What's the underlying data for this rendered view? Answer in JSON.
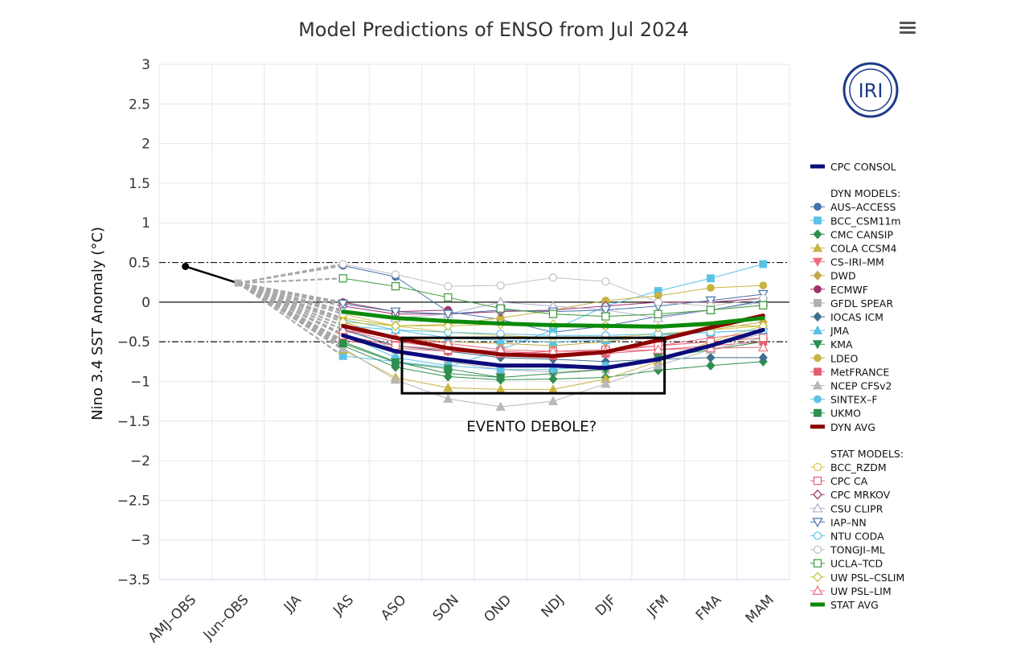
{
  "chart_data": {
    "type": "line",
    "title": "Model Predictions of ENSO from Jul 2024",
    "ylabel": "Nino 3.4 SST Anomaly (°C)",
    "xlabel": "",
    "ylim": [
      -3.5,
      3
    ],
    "yticks": [
      "3",
      "2.5",
      "2",
      "1.5",
      "1",
      "0.5",
      "0",
      "−0.5",
      "−1",
      "−1.5",
      "−2",
      "−2.5",
      "−3",
      "−3.5"
    ],
    "ytick_values": [
      3,
      2.5,
      2,
      1.5,
      1,
      0.5,
      0,
      -0.5,
      -1,
      -1.5,
      -2,
      -2.5,
      -3,
      -3.5
    ],
    "categories": [
      "AMJ–OBS",
      "Jun–OBS",
      "JJA",
      "JAS",
      "ASO",
      "SON",
      "OND",
      "NDJ",
      "DJF",
      "JFM",
      "FMA",
      "MAM"
    ],
    "thresholds": [
      0.5,
      -0.5
    ],
    "zero_line": 0,
    "observed": {
      "name": "OBS",
      "x": [
        "AMJ–OBS",
        "Jun–OBS"
      ],
      "values": [
        0.45,
        0.24
      ],
      "color": "#000000"
    },
    "annotation": {
      "text": "EVENTO DEBOLE?",
      "box_x_range": [
        "ASO",
        "JFM"
      ],
      "box_y_range": [
        -0.45,
        -1.15
      ]
    },
    "logo_text": "IRI",
    "legend": {
      "consol_label": "CPC CONSOL",
      "dyn_header": "DYN MODELS:",
      "stat_header": "STAT MODELS:"
    },
    "series": [
      {
        "name": "CPC CONSOL",
        "group": "consol",
        "color": "#0b0b7a",
        "marker": "none",
        "width": 5,
        "values": [
          null,
          null,
          null,
          -0.42,
          -0.62,
          -0.72,
          -0.8,
          -0.8,
          -0.83,
          -0.72,
          -0.55,
          -0.35
        ]
      },
      {
        "name": "AUS–ACCESS",
        "group": "dyn",
        "color": "#4572a7",
        "marker": "circle",
        "width": 1,
        "values": [
          null,
          null,
          null,
          0.46,
          0.32,
          -0.12,
          -0.22,
          -0.38,
          -0.3,
          -0.18,
          -0.1,
          0.02
        ]
      },
      {
        "name": "BCC_CSM11m",
        "group": "dyn",
        "color": "#5bc2e7",
        "marker": "square",
        "width": 1,
        "values": [
          null,
          null,
          null,
          -0.68,
          -0.75,
          -0.82,
          -0.6,
          -0.35,
          -0.05,
          0.14,
          0.3,
          0.48
        ]
      },
      {
        "name": "CMC CANSIP",
        "group": "dyn",
        "color": "#2f8f4e",
        "marker": "diamond",
        "width": 1,
        "values": [
          null,
          null,
          null,
          -0.55,
          -0.82,
          -0.94,
          -0.98,
          -0.97,
          -0.95,
          -0.86,
          -0.8,
          -0.75
        ]
      },
      {
        "name": "COLA CCSM4",
        "group": "dyn",
        "color": "#c8b440",
        "marker": "triangle",
        "width": 1,
        "values": [
          null,
          null,
          null,
          -0.6,
          -0.95,
          -1.08,
          -1.1,
          -1.1,
          -0.97,
          -0.75,
          -0.5,
          -0.3
        ]
      },
      {
        "name": "CS–IRI–MM",
        "group": "dyn",
        "color": "#ee6f82",
        "marker": "triangle-down",
        "width": 1,
        "values": [
          null,
          null,
          null,
          -0.35,
          -0.5,
          -0.58,
          -0.62,
          -0.65,
          -0.62,
          -0.55,
          -0.45,
          -0.38
        ]
      },
      {
        "name": "DWD",
        "group": "dyn",
        "color": "#c2a94a",
        "marker": "diamond",
        "width": 1,
        "values": [
          null,
          null,
          null,
          -0.25,
          -0.45,
          -0.5,
          -0.52,
          -0.55,
          -0.5,
          -0.42,
          -0.35,
          -0.25
        ]
      },
      {
        "name": "ECMWF",
        "group": "dyn",
        "color": "#a0306b",
        "marker": "circle",
        "width": 1,
        "values": [
          null,
          null,
          null,
          0.0,
          -0.12,
          -0.1,
          null,
          null,
          null,
          null,
          null,
          null
        ]
      },
      {
        "name": "GFDL SPEAR",
        "group": "dyn",
        "color": "#b0b0b0",
        "marker": "square",
        "width": 1,
        "values": [
          null,
          null,
          null,
          -0.3,
          -0.6,
          -0.75,
          -0.85,
          -0.88,
          -0.85,
          -0.7,
          -0.55,
          -0.4
        ]
      },
      {
        "name": "IOCAS ICM",
        "group": "dyn",
        "color": "#3f6e8f",
        "marker": "diamond",
        "width": 1,
        "values": [
          null,
          null,
          null,
          -0.35,
          -0.55,
          -0.62,
          -0.7,
          -0.72,
          -0.75,
          -0.72,
          -0.7,
          -0.7
        ]
      },
      {
        "name": "JMA",
        "group": "dyn",
        "color": "#5bc2e7",
        "marker": "triangle",
        "width": 1,
        "values": [
          null,
          null,
          null,
          -0.22,
          -0.35,
          -0.45,
          -0.48,
          -0.5,
          -0.48,
          -0.42,
          -0.38,
          -0.35
        ]
      },
      {
        "name": "KMA",
        "group": "dyn",
        "color": "#2f8f4e",
        "marker": "triangle-down",
        "width": 1,
        "values": [
          null,
          null,
          null,
          -0.5,
          -0.75,
          -0.9,
          -0.95,
          -0.9,
          -0.85,
          -0.7,
          -0.6,
          -0.5
        ]
      },
      {
        "name": "LDEO",
        "group": "dyn",
        "color": "#c8b440",
        "marker": "circle",
        "width": 1,
        "values": [
          null,
          null,
          null,
          -0.2,
          -0.3,
          -0.28,
          -0.2,
          -0.1,
          0.02,
          0.08,
          0.18,
          0.21
        ]
      },
      {
        "name": "MetFRANCE",
        "group": "dyn",
        "color": "#e06070",
        "marker": "square",
        "width": 1,
        "values": [
          null,
          null,
          null,
          -0.48,
          -0.58,
          -0.62,
          -0.65,
          -0.68,
          -0.65,
          -0.6,
          -0.55,
          -0.5
        ]
      },
      {
        "name": "NCEP CFSv2",
        "group": "dyn",
        "color": "#b8b8b8",
        "marker": "triangle",
        "width": 1,
        "values": [
          null,
          null,
          null,
          -0.58,
          -0.98,
          -1.22,
          -1.32,
          -1.25,
          -1.03,
          -0.8,
          -0.6,
          -0.45
        ]
      },
      {
        "name": "SINTEX–F",
        "group": "dyn",
        "color": "#5bc2e7",
        "marker": "circle",
        "width": 1,
        "values": [
          null,
          null,
          null,
          -0.4,
          -0.7,
          -0.8,
          -0.85,
          -0.85,
          -0.8,
          null,
          null,
          null
        ]
      },
      {
        "name": "UKMO",
        "group": "dyn",
        "color": "#2f8f4e",
        "marker": "square",
        "width": 1,
        "values": [
          null,
          null,
          null,
          -0.52,
          -0.76,
          -0.84,
          -0.95,
          null,
          null,
          null,
          null,
          null
        ]
      },
      {
        "name": "DYN AVG",
        "group": "dyn",
        "color": "#8b0000",
        "marker": "none",
        "width": 5,
        "values": [
          null,
          null,
          null,
          -0.3,
          -0.45,
          -0.58,
          -0.66,
          -0.68,
          -0.63,
          -0.48,
          -0.32,
          -0.17
        ]
      },
      {
        "name": "BCC_RZDM",
        "group": "stat",
        "color": "#d8c24a",
        "marker": "circle-open",
        "width": 1,
        "values": [
          null,
          null,
          null,
          -0.15,
          -0.3,
          -0.38,
          -0.42,
          -0.45,
          -0.45,
          -0.4,
          -0.35,
          -0.3
        ]
      },
      {
        "name": "CPC CA",
        "group": "stat",
        "color": "#e06070",
        "marker": "square-open",
        "width": 1,
        "values": [
          null,
          null,
          null,
          -0.42,
          -0.55,
          -0.6,
          -0.65,
          -0.62,
          -0.6,
          -0.55,
          -0.5,
          -0.45
        ]
      },
      {
        "name": "CPC MRKOV",
        "group": "stat",
        "color": "#a0306b",
        "marker": "diamond-open",
        "width": 1,
        "values": [
          null,
          null,
          null,
          -0.05,
          -0.15,
          -0.15,
          -0.12,
          -0.1,
          -0.05,
          0.0,
          0.0,
          0.05
        ]
      },
      {
        "name": "CSU CLIPR",
        "group": "stat",
        "color": "#b0b0cc",
        "marker": "triangle-open",
        "width": 1,
        "values": [
          null,
          null,
          null,
          -0.1,
          -0.2,
          -0.15,
          0.0,
          -0.05,
          -0.1,
          -0.2,
          -0.1,
          0.0
        ]
      },
      {
        "name": "IAP–NN",
        "group": "stat",
        "color": "#4572a7",
        "marker": "triangle-down-open",
        "width": 1,
        "values": [
          null,
          null,
          null,
          -0.02,
          -0.12,
          -0.15,
          -0.1,
          -0.12,
          -0.1,
          -0.05,
          0.02,
          0.1
        ]
      },
      {
        "name": "NTU CODA",
        "group": "stat",
        "color": "#5bc2e7",
        "marker": "circle-open",
        "width": 1,
        "values": [
          null,
          null,
          null,
          -0.3,
          -0.35,
          -0.38,
          -0.4,
          -0.42,
          -0.42,
          -0.4,
          -0.38,
          -0.35
        ]
      },
      {
        "name": "TONGJI–ML",
        "group": "stat",
        "color": "#c0c0c0",
        "marker": "circle-open",
        "width": 1,
        "values": [
          null,
          null,
          null,
          0.48,
          0.35,
          0.2,
          0.21,
          0.31,
          0.26,
          0.0,
          -0.05,
          0.05
        ]
      },
      {
        "name": "UCLA–TCD",
        "group": "stat",
        "color": "#3a9a3a",
        "marker": "square-open",
        "width": 1,
        "values": [
          null,
          null,
          null,
          0.3,
          0.2,
          0.06,
          -0.08,
          -0.15,
          -0.18,
          -0.15,
          -0.1,
          -0.04
        ]
      },
      {
        "name": "UW PSL–CSLIM",
        "group": "stat",
        "color": "#c8c040",
        "marker": "diamond-open",
        "width": 1,
        "values": [
          null,
          null,
          null,
          -0.25,
          -0.3,
          -0.3,
          -0.28,
          -0.28,
          -0.3,
          -0.32,
          -0.3,
          -0.3
        ]
      },
      {
        "name": "UW PSL–LIM",
        "group": "stat",
        "color": "#ee6f82",
        "marker": "triangle-open",
        "width": 1,
        "values": [
          null,
          null,
          null,
          -0.35,
          -0.45,
          -0.52,
          -0.6,
          -0.62,
          -0.62,
          -0.6,
          -0.58,
          -0.57
        ]
      },
      {
        "name": "STAT AVG",
        "group": "stat",
        "color": "#0a8a0a",
        "marker": "none",
        "width": 5,
        "values": [
          null,
          null,
          null,
          -0.12,
          -0.2,
          -0.24,
          -0.27,
          -0.29,
          -0.3,
          -0.31,
          -0.27,
          -0.2
        ]
      }
    ]
  }
}
